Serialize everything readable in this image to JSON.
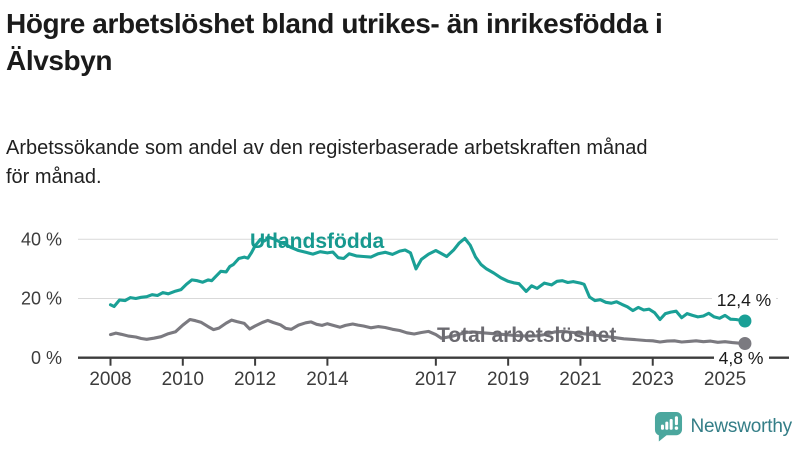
{
  "header": {
    "title_line1": "Högre arbetslöshet bland utrikes- än inrikesfödda i",
    "title_line2": "Älvsbyn",
    "title_full": "Högre arbetslöshet bland utrikes- än inrikesfödda i Älvsbyn",
    "subtitle_line1": "Arbetssökande som andel av den registerbaserade arbetskraften månad",
    "subtitle_line2": "för månad.",
    "title_color": "#1b1b1b"
  },
  "chart_data": {
    "type": "line",
    "title": "Högre arbetslöshet bland utrikes- än inrikesfödda i Älvsbyn",
    "subtitle": "Arbetssökande som andel av den registerbaserade arbetskraften månad för månad.",
    "unit": "%",
    "grid": true,
    "xlim": [
      2007.1,
      2026.8
    ],
    "ylim": [
      0,
      48
    ],
    "x_tick_years": [
      2008,
      2010,
      2012,
      2014,
      2017,
      2019,
      2021,
      2023,
      2025
    ],
    "x_tick_labels": [
      "2008",
      "2010",
      "2012",
      "2014",
      "2017",
      "2019",
      "2021",
      "2023",
      "2025"
    ],
    "y_ticks": [
      0,
      20,
      40
    ],
    "y_tick_labels": [
      "0 %",
      "20 %",
      "40 %"
    ],
    "axis_color": "#3c3c3c",
    "grid_color": "#d9d9d9",
    "tick_label_color": "#3c3c3c",
    "end_label_color": "#1a1a1a",
    "series": [
      {
        "name": "Utlandsfödda",
        "color": "#1aa096",
        "label_color": "#17998f",
        "end_label": "12,4 %",
        "end_value": 12.4,
        "points": [
          [
            2008.0,
            17.9
          ],
          [
            2008.1,
            17.3
          ],
          [
            2008.25,
            19.5
          ],
          [
            2008.4,
            19.3
          ],
          [
            2008.55,
            20.3
          ],
          [
            2008.7,
            20.0
          ],
          [
            2008.85,
            20.4
          ],
          [
            2009.0,
            20.6
          ],
          [
            2009.15,
            21.3
          ],
          [
            2009.3,
            21.0
          ],
          [
            2009.45,
            22.0
          ],
          [
            2009.6,
            21.6
          ],
          [
            2009.8,
            22.5
          ],
          [
            2009.95,
            23.0
          ],
          [
            2010.1,
            24.8
          ],
          [
            2010.25,
            26.3
          ],
          [
            2010.4,
            26.0
          ],
          [
            2010.55,
            25.5
          ],
          [
            2010.7,
            26.3
          ],
          [
            2010.8,
            26.0
          ],
          [
            2010.9,
            27.3
          ],
          [
            2011.05,
            29.2
          ],
          [
            2011.2,
            29.0
          ],
          [
            2011.3,
            30.8
          ],
          [
            2011.4,
            31.5
          ],
          [
            2011.55,
            33.5
          ],
          [
            2011.7,
            34.0
          ],
          [
            2011.8,
            33.6
          ],
          [
            2011.9,
            35.5
          ],
          [
            2012.0,
            37.8
          ],
          [
            2012.15,
            40.0
          ],
          [
            2012.25,
            39.4
          ],
          [
            2012.4,
            40.6
          ],
          [
            2012.55,
            40.0
          ],
          [
            2012.7,
            39.0
          ],
          [
            2012.85,
            38.2
          ],
          [
            2013.0,
            37.2
          ],
          [
            2013.2,
            36.2
          ],
          [
            2013.4,
            35.6
          ],
          [
            2013.6,
            35.0
          ],
          [
            2013.8,
            35.8
          ],
          [
            2014.0,
            35.4
          ],
          [
            2014.15,
            35.7
          ],
          [
            2014.3,
            33.8
          ],
          [
            2014.45,
            33.5
          ],
          [
            2014.6,
            35.1
          ],
          [
            2014.8,
            34.4
          ],
          [
            2015.0,
            34.2
          ],
          [
            2015.2,
            34.0
          ],
          [
            2015.4,
            35.1
          ],
          [
            2015.6,
            35.6
          ],
          [
            2015.8,
            34.9
          ],
          [
            2016.0,
            36.0
          ],
          [
            2016.15,
            36.4
          ],
          [
            2016.3,
            35.4
          ],
          [
            2016.45,
            30.0
          ],
          [
            2016.6,
            33.2
          ],
          [
            2016.8,
            35.0
          ],
          [
            2017.0,
            36.2
          ],
          [
            2017.15,
            35.2
          ],
          [
            2017.3,
            34.2
          ],
          [
            2017.5,
            36.5
          ],
          [
            2017.65,
            38.8
          ],
          [
            2017.8,
            40.3
          ],
          [
            2017.95,
            38.0
          ],
          [
            2018.1,
            34.0
          ],
          [
            2018.25,
            31.5
          ],
          [
            2018.4,
            30.0
          ],
          [
            2018.6,
            28.6
          ],
          [
            2018.8,
            27.0
          ],
          [
            2019.0,
            25.8
          ],
          [
            2019.15,
            25.3
          ],
          [
            2019.3,
            25.0
          ],
          [
            2019.5,
            22.4
          ],
          [
            2019.65,
            24.3
          ],
          [
            2019.8,
            23.4
          ],
          [
            2020.0,
            25.2
          ],
          [
            2020.2,
            24.6
          ],
          [
            2020.35,
            25.8
          ],
          [
            2020.5,
            26.0
          ],
          [
            2020.65,
            25.4
          ],
          [
            2020.8,
            25.7
          ],
          [
            2021.0,
            25.2
          ],
          [
            2021.1,
            24.8
          ],
          [
            2021.25,
            20.5
          ],
          [
            2021.4,
            19.3
          ],
          [
            2021.55,
            19.6
          ],
          [
            2021.7,
            18.7
          ],
          [
            2021.85,
            18.4
          ],
          [
            2022.0,
            18.9
          ],
          [
            2022.15,
            18.0
          ],
          [
            2022.3,
            17.2
          ],
          [
            2022.45,
            15.9
          ],
          [
            2022.6,
            17.0
          ],
          [
            2022.75,
            16.1
          ],
          [
            2022.9,
            16.4
          ],
          [
            2023.05,
            15.2
          ],
          [
            2023.2,
            12.9
          ],
          [
            2023.35,
            14.9
          ],
          [
            2023.5,
            15.4
          ],
          [
            2023.65,
            15.7
          ],
          [
            2023.8,
            13.5
          ],
          [
            2023.95,
            14.9
          ],
          [
            2024.1,
            14.3
          ],
          [
            2024.25,
            13.8
          ],
          [
            2024.4,
            14.1
          ],
          [
            2024.55,
            15.0
          ],
          [
            2024.7,
            13.8
          ],
          [
            2024.85,
            13.3
          ],
          [
            2025.0,
            14.3
          ],
          [
            2025.15,
            13.0
          ],
          [
            2025.3,
            12.9
          ],
          [
            2025.45,
            12.6
          ],
          [
            2025.55,
            12.4
          ]
        ]
      },
      {
        "name": "Total arbetslöshet",
        "color": "#7b7a80",
        "label_color": "#6b6a70",
        "end_label": "4,8 %",
        "end_value": 4.8,
        "points": [
          [
            2008.0,
            7.8
          ],
          [
            2008.15,
            8.3
          ],
          [
            2008.3,
            7.9
          ],
          [
            2008.5,
            7.3
          ],
          [
            2008.7,
            7.0
          ],
          [
            2008.85,
            6.5
          ],
          [
            2009.0,
            6.2
          ],
          [
            2009.2,
            6.6
          ],
          [
            2009.4,
            7.1
          ],
          [
            2009.6,
            8.1
          ],
          [
            2009.8,
            8.8
          ],
          [
            2010.0,
            11.0
          ],
          [
            2010.2,
            12.9
          ],
          [
            2010.35,
            12.5
          ],
          [
            2010.5,
            12.0
          ],
          [
            2010.7,
            10.5
          ],
          [
            2010.85,
            9.5
          ],
          [
            2011.0,
            10.0
          ],
          [
            2011.2,
            11.7
          ],
          [
            2011.35,
            12.7
          ],
          [
            2011.5,
            12.2
          ],
          [
            2011.7,
            11.6
          ],
          [
            2011.85,
            9.7
          ],
          [
            2012.0,
            10.7
          ],
          [
            2012.2,
            11.9
          ],
          [
            2012.35,
            12.6
          ],
          [
            2012.5,
            11.9
          ],
          [
            2012.7,
            11.1
          ],
          [
            2012.85,
            9.9
          ],
          [
            2013.0,
            9.6
          ],
          [
            2013.2,
            11.0
          ],
          [
            2013.4,
            11.8
          ],
          [
            2013.55,
            12.1
          ],
          [
            2013.7,
            11.3
          ],
          [
            2013.85,
            10.9
          ],
          [
            2014.0,
            11.5
          ],
          [
            2014.2,
            10.8
          ],
          [
            2014.35,
            10.3
          ],
          [
            2014.5,
            10.9
          ],
          [
            2014.7,
            11.4
          ],
          [
            2014.85,
            11.0
          ],
          [
            2015.0,
            10.7
          ],
          [
            2015.2,
            10.1
          ],
          [
            2015.4,
            10.5
          ],
          [
            2015.6,
            10.2
          ],
          [
            2015.8,
            9.6
          ],
          [
            2016.0,
            9.2
          ],
          [
            2016.2,
            8.4
          ],
          [
            2016.4,
            8.0
          ],
          [
            2016.6,
            8.5
          ],
          [
            2016.8,
            8.9
          ],
          [
            2017.0,
            7.8
          ],
          [
            2017.15,
            6.6
          ],
          [
            2017.3,
            6.9
          ],
          [
            2017.5,
            7.4
          ],
          [
            2017.7,
            8.1
          ],
          [
            2017.85,
            8.5
          ],
          [
            2018.0,
            8.7
          ],
          [
            2018.3,
            8.4
          ],
          [
            2018.6,
            8.1
          ],
          [
            2018.9,
            7.8
          ],
          [
            2019.2,
            7.5
          ],
          [
            2019.5,
            7.3
          ],
          [
            2019.8,
            7.4
          ],
          [
            2020.0,
            7.8
          ],
          [
            2020.3,
            8.7
          ],
          [
            2020.5,
            8.9
          ],
          [
            2020.8,
            8.5
          ],
          [
            2021.0,
            8.2
          ],
          [
            2021.3,
            7.8
          ],
          [
            2021.6,
            7.3
          ],
          [
            2021.9,
            6.9
          ],
          [
            2022.2,
            6.4
          ],
          [
            2022.5,
            6.1
          ],
          [
            2022.8,
            5.8
          ],
          [
            2023.0,
            5.7
          ],
          [
            2023.2,
            5.3
          ],
          [
            2023.4,
            5.6
          ],
          [
            2023.6,
            5.7
          ],
          [
            2023.8,
            5.3
          ],
          [
            2024.0,
            5.5
          ],
          [
            2024.2,
            5.7
          ],
          [
            2024.4,
            5.4
          ],
          [
            2024.6,
            5.6
          ],
          [
            2024.8,
            5.2
          ],
          [
            2025.0,
            5.4
          ],
          [
            2025.2,
            5.1
          ],
          [
            2025.4,
            4.9
          ],
          [
            2025.55,
            4.8
          ]
        ]
      }
    ]
  },
  "footer": {
    "brand": "Newsworthy",
    "brand_text_color": "#347e87",
    "logo_icon": "newsworthy-speech-bubble-bar-chart-icon",
    "logo_icon_color": "#4ba79e"
  }
}
